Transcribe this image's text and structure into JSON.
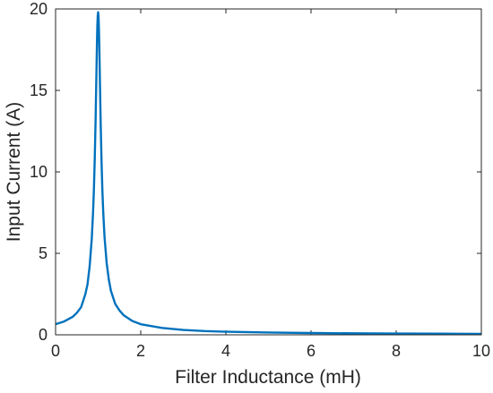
{
  "chart_data": {
    "type": "line",
    "title": "",
    "xlabel": "Filter Inductance (mH)",
    "ylabel": "Input Current (A)",
    "xlim": [
      0,
      10
    ],
    "ylim": [
      0,
      20
    ],
    "xticks": [
      "0",
      "2",
      "4",
      "6",
      "8",
      "10"
    ],
    "yticks": [
      "0",
      "5",
      "10",
      "15",
      "20"
    ],
    "grid": false,
    "legend": "none",
    "series": [
      {
        "color": "#0072BD",
        "x": [
          0,
          0.2,
          0.4,
          0.5,
          0.6,
          0.7,
          0.75,
          0.8,
          0.85,
          0.88,
          0.9,
          0.92,
          0.94,
          0.96,
          0.97,
          0.98,
          0.99,
          1.0,
          1.01,
          1.02,
          1.03,
          1.04,
          1.06,
          1.08,
          1.1,
          1.12,
          1.15,
          1.2,
          1.25,
          1.3,
          1.4,
          1.5,
          1.6,
          1.8,
          2.0,
          2.5,
          3.0,
          3.5,
          4.0,
          5.0,
          6.0,
          7.0,
          8.0,
          9.0,
          10.0
        ],
        "y": [
          0.65,
          0.82,
          1.1,
          1.35,
          1.7,
          2.5,
          3.1,
          4.2,
          5.9,
          7.5,
          8.9,
          10.8,
          13.2,
          16.1,
          17.6,
          18.9,
          19.6,
          19.8,
          19.5,
          18.6,
          17.3,
          15.8,
          12.9,
          10.6,
          8.8,
          7.5,
          6.0,
          4.4,
          3.4,
          2.7,
          1.9,
          1.5,
          1.2,
          0.85,
          0.65,
          0.42,
          0.3,
          0.23,
          0.19,
          0.14,
          0.11,
          0.09,
          0.08,
          0.07,
          0.06
        ]
      }
    ]
  }
}
